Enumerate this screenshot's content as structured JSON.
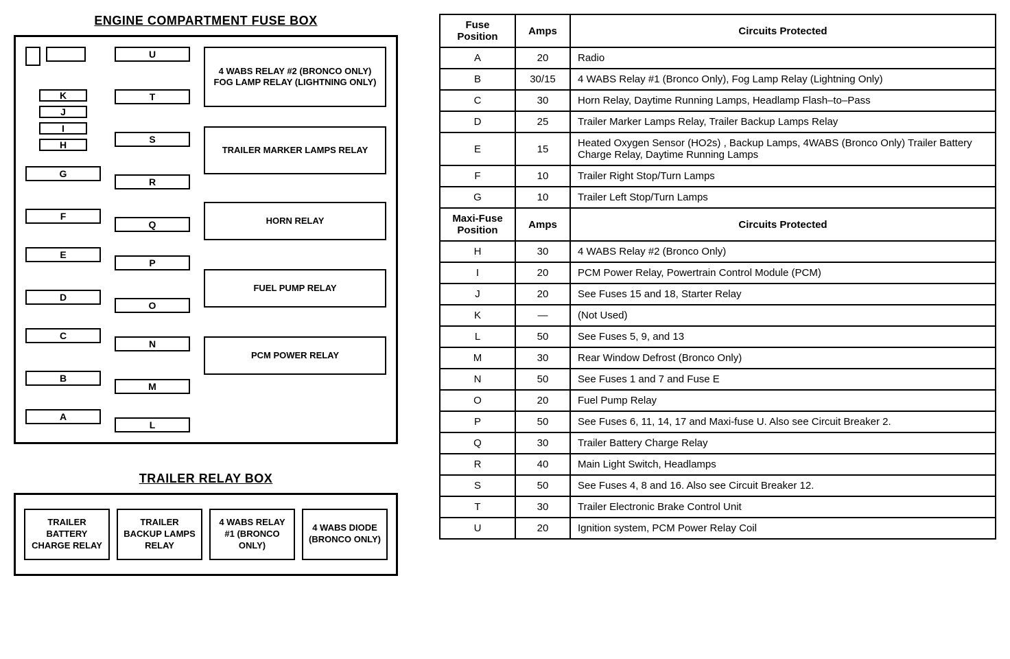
{
  "colors": {
    "border": "#000000",
    "text": "#000000",
    "background": "#ffffff"
  },
  "engine_box": {
    "title": "ENGINE COMPARTMENT FUSE BOX",
    "col1_top_slots": [
      "K",
      "J",
      "I",
      "H"
    ],
    "col1_slots": [
      "G",
      "F",
      "E",
      "D",
      "C",
      "B",
      "A"
    ],
    "col2_slots": [
      "U",
      "T",
      "S",
      "R",
      "Q",
      "P",
      "O",
      "N",
      "M",
      "L"
    ],
    "relays": [
      "4 WABS RELAY #2 (BRONCO ONLY) FOG LAMP RELAY (LIGHTNING ONLY)",
      "TRAILER MARKER LAMPS RELAY",
      "HORN RELAY",
      "FUEL PUMP RELAY",
      "PCM POWER RELAY"
    ]
  },
  "trailer_box": {
    "title": "TRAILER RELAY BOX",
    "relays": [
      "TRAILER BATTERY CHARGE RELAY",
      "TRAILER BACKUP LAMPS RELAY",
      "4 WABS RELAY #1 (BRONCO ONLY)",
      "4 WABS DIODE (BRONCO ONLY)"
    ]
  },
  "table": {
    "header1": {
      "c0": "Fuse Position",
      "c1": "Amps",
      "c2": "Circuits Protected"
    },
    "rows1": [
      {
        "pos": "A",
        "amps": "20",
        "desc": "Radio"
      },
      {
        "pos": "B",
        "amps": "30/15",
        "desc": "4 WABS Relay #1 (Bronco Only), Fog Lamp Relay (Lightning Only)"
      },
      {
        "pos": "C",
        "amps": "30",
        "desc": "Horn Relay, Daytime Running Lamps, Headlamp Flash–to–Pass"
      },
      {
        "pos": "D",
        "amps": "25",
        "desc": "Trailer Marker Lamps Relay, Trailer Backup Lamps Relay"
      },
      {
        "pos": "E",
        "amps": "15",
        "desc": "Heated Oxygen Sensor (HO2s) , Backup Lamps, 4WABS (Bronco Only) Trailer Battery Charge Relay, Daytime Running Lamps"
      },
      {
        "pos": "F",
        "amps": "10",
        "desc": "Trailer Right Stop/Turn Lamps"
      },
      {
        "pos": "G",
        "amps": "10",
        "desc": "Trailer Left Stop/Turn Lamps"
      }
    ],
    "header2": {
      "c0": "Maxi-Fuse Position",
      "c1": "Amps",
      "c2": "Circuits Protected"
    },
    "rows2": [
      {
        "pos": "H",
        "amps": "30",
        "desc": "4 WABS Relay #2 (Bronco Only)"
      },
      {
        "pos": "I",
        "amps": "20",
        "desc": "PCM Power Relay, Powertrain Control Module (PCM)"
      },
      {
        "pos": "J",
        "amps": "20",
        "desc": "See Fuses 15 and 18, Starter Relay"
      },
      {
        "pos": "K",
        "amps": "—",
        "desc": "(Not Used)"
      },
      {
        "pos": "L",
        "amps": "50",
        "desc": "See Fuses 5, 9, and 13"
      },
      {
        "pos": "M",
        "amps": "30",
        "desc": "Rear Window Defrost (Bronco Only)"
      },
      {
        "pos": "N",
        "amps": "50",
        "desc": "See Fuses 1 and 7 and Fuse E"
      },
      {
        "pos": "O",
        "amps": "20",
        "desc": "Fuel Pump Relay"
      },
      {
        "pos": "P",
        "amps": "50",
        "desc": "See Fuses 6, 11, 14, 17 and Maxi-fuse U. Also see Circuit Breaker 2."
      },
      {
        "pos": "Q",
        "amps": "30",
        "desc": "Trailer Battery Charge Relay"
      },
      {
        "pos": "R",
        "amps": "40",
        "desc": "Main Light Switch, Headlamps"
      },
      {
        "pos": "S",
        "amps": "50",
        "desc": "See Fuses 4, 8 and 16. Also see Circuit Breaker 12."
      },
      {
        "pos": "T",
        "amps": "30",
        "desc": "Trailer Electronic Brake Control Unit"
      },
      {
        "pos": "U",
        "amps": "20",
        "desc": "Ignition system, PCM Power Relay Coil"
      }
    ]
  }
}
